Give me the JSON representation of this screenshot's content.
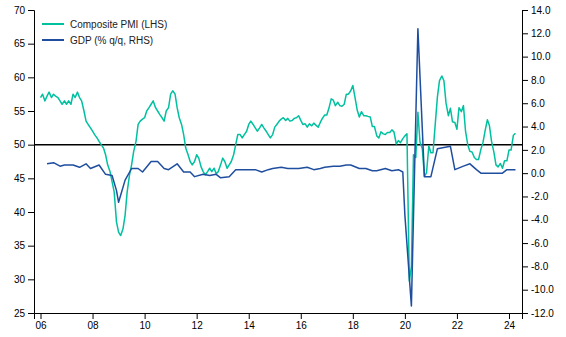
{
  "chart_data": {
    "type": "line",
    "xlim": [
      2005.75,
      2024.5
    ],
    "xticks": [
      {
        "value": 2006,
        "label": "06"
      },
      {
        "value": 2008,
        "label": "08"
      },
      {
        "value": 2010,
        "label": "10"
      },
      {
        "value": 2012,
        "label": "12"
      },
      {
        "value": 2014,
        "label": "14"
      },
      {
        "value": 2016,
        "label": "16"
      },
      {
        "value": 2018,
        "label": "18"
      },
      {
        "value": 2020,
        "label": "20"
      },
      {
        "value": 2022,
        "label": "22"
      },
      {
        "value": 2024,
        "label": "24"
      }
    ],
    "ylim": [
      25,
      70
    ],
    "yticks": [
      25,
      30,
      35,
      40,
      45,
      50,
      55,
      60,
      65,
      70
    ],
    "y2lim": [
      -12.0,
      14.0
    ],
    "y2ticks": [
      {
        "value": -12.0,
        "label": "-12.0"
      },
      {
        "value": -10.0,
        "label": "-10.0"
      },
      {
        "value": -8.0,
        "label": "-8.0"
      },
      {
        "value": -6.0,
        "label": "-6.0"
      },
      {
        "value": -4.0,
        "label": "-4.0"
      },
      {
        "value": -2.0,
        "label": "-2.0"
      },
      {
        "value": 0.0,
        "label": "0.0"
      },
      {
        "value": 2.0,
        "label": "2.0"
      },
      {
        "value": 4.0,
        "label": "4.0"
      },
      {
        "value": 6.0,
        "label": "6.0"
      },
      {
        "value": 8.0,
        "label": "8.0"
      },
      {
        "value": 10.0,
        "label": "10.0"
      },
      {
        "value": 12.0,
        "label": "12.0"
      },
      {
        "value": 14.0,
        "label": "14.0"
      }
    ],
    "grid": false,
    "legend": "upper left",
    "hline": {
      "y": 50,
      "color": "black"
    },
    "series": [
      {
        "name": "Composite PMI (LHS)",
        "color": "#00C0A0",
        "x": [
          2006.0,
          2006.08,
          2006.17,
          2006.25,
          2006.33,
          2006.42,
          2006.5,
          2006.58,
          2006.67,
          2006.75,
          2006.83,
          2006.92,
          2007.0,
          2007.08,
          2007.17,
          2007.25,
          2007.33,
          2007.42,
          2007.5,
          2007.58,
          2007.67,
          2007.75,
          2007.83,
          2007.92,
          2008.0,
          2008.08,
          2008.17,
          2008.25,
          2008.33,
          2008.42,
          2008.5,
          2008.58,
          2008.67,
          2008.75,
          2008.83,
          2008.92,
          2009.0,
          2009.08,
          2009.17,
          2009.25,
          2009.33,
          2009.42,
          2009.5,
          2009.58,
          2009.67,
          2009.75,
          2009.83,
          2009.92,
          2010.0,
          2010.08,
          2010.17,
          2010.25,
          2010.33,
          2010.42,
          2010.5,
          2010.58,
          2010.67,
          2010.75,
          2010.83,
          2010.92,
          2011.0,
          2011.08,
          2011.17,
          2011.25,
          2011.33,
          2011.42,
          2011.5,
          2011.58,
          2011.67,
          2011.75,
          2011.83,
          2011.92,
          2012.0,
          2012.08,
          2012.17,
          2012.25,
          2012.33,
          2012.42,
          2012.5,
          2012.58,
          2012.67,
          2012.75,
          2012.83,
          2012.92,
          2013.0,
          2013.08,
          2013.17,
          2013.25,
          2013.33,
          2013.42,
          2013.5,
          2013.58,
          2013.67,
          2013.75,
          2013.83,
          2013.92,
          2014.0,
          2014.08,
          2014.17,
          2014.25,
          2014.33,
          2014.42,
          2014.5,
          2014.58,
          2014.67,
          2014.75,
          2014.83,
          2014.92,
          2015.0,
          2015.08,
          2015.17,
          2015.25,
          2015.33,
          2015.42,
          2015.5,
          2015.58,
          2015.67,
          2015.75,
          2015.83,
          2015.92,
          2016.0,
          2016.08,
          2016.17,
          2016.25,
          2016.33,
          2016.42,
          2016.5,
          2016.58,
          2016.67,
          2016.75,
          2016.83,
          2016.92,
          2017.0,
          2017.08,
          2017.17,
          2017.25,
          2017.33,
          2017.42,
          2017.5,
          2017.58,
          2017.67,
          2017.75,
          2017.83,
          2017.92,
          2018.0,
          2018.08,
          2018.17,
          2018.25,
          2018.33,
          2018.42,
          2018.5,
          2018.58,
          2018.67,
          2018.75,
          2018.83,
          2018.92,
          2019.0,
          2019.08,
          2019.17,
          2019.25,
          2019.33,
          2019.42,
          2019.5,
          2019.58,
          2019.67,
          2019.75,
          2019.83,
          2019.92,
          2020.0,
          2020.08,
          2020.17,
          2020.25,
          2020.33,
          2020.42,
          2020.5,
          2020.58,
          2020.67,
          2020.75,
          2020.83,
          2020.92,
          2021.0,
          2021.08,
          2021.17,
          2021.25,
          2021.33,
          2021.42,
          2021.5,
          2021.58,
          2021.67,
          2021.75,
          2021.83,
          2021.92,
          2022.0,
          2022.08,
          2022.17,
          2022.25,
          2022.33,
          2022.42,
          2022.5,
          2022.58,
          2022.67,
          2022.75,
          2022.83,
          2022.92,
          2023.0,
          2023.08,
          2023.17,
          2023.25,
          2023.33,
          2023.42,
          2023.5,
          2023.58,
          2023.67,
          2023.75,
          2023.83,
          2023.92,
          2024.0,
          2024.08,
          2024.17,
          2024.25
        ],
        "values": [
          57.0,
          57.5,
          56.5,
          57.2,
          57.8,
          57.0,
          57.5,
          57.2,
          57.0,
          56.5,
          56.0,
          56.5,
          56.0,
          56.5,
          56.0,
          57.5,
          57.0,
          57.8,
          57.0,
          56.5,
          55.0,
          53.5,
          53.0,
          52.5,
          52.0,
          51.5,
          51.0,
          50.5,
          50.0,
          49.5,
          48.5,
          47.0,
          46.0,
          44.5,
          43.0,
          38.5,
          37.0,
          36.5,
          37.5,
          39.5,
          43.0,
          45.5,
          47.0,
          49.0,
          50.5,
          53.0,
          53.5,
          53.8,
          54.0,
          55.0,
          55.5,
          56.0,
          56.5,
          55.5,
          55.0,
          54.5,
          54.0,
          53.5,
          55.0,
          55.5,
          57.5,
          58.0,
          57.5,
          55.5,
          54.0,
          53.0,
          51.5,
          49.5,
          48.5,
          47.5,
          47.0,
          47.5,
          48.5,
          48.0,
          46.7,
          46.0,
          45.5,
          46.0,
          46.5,
          46.0,
          46.5,
          45.7,
          46.0,
          47.0,
          48.0,
          47.5,
          46.5,
          47.0,
          47.5,
          48.5,
          50.0,
          51.5,
          51.5,
          51.0,
          51.5,
          52.0,
          53.0,
          53.5,
          53.0,
          52.5,
          52.0,
          52.5,
          53.0,
          52.5,
          52.0,
          51.5,
          51.0,
          51.5,
          52.6,
          53.0,
          53.5,
          53.8,
          54.0,
          53.6,
          53.9,
          53.5,
          53.6,
          53.9,
          54.0,
          54.3,
          53.6,
          53.0,
          53.1,
          52.6,
          53.1,
          52.8,
          53.2,
          52.9,
          52.6,
          53.3,
          53.9,
          54.4,
          54.4,
          55.4,
          56.8,
          56.6,
          55.8,
          56.3,
          55.8,
          55.7,
          56.0,
          57.5,
          57.5,
          58.0,
          58.8,
          57.1,
          55.1,
          54.1,
          54.9,
          54.3,
          54.3,
          54.2,
          54.1,
          52.7,
          52.7,
          51.3,
          51.0,
          51.9,
          51.6,
          51.5,
          51.8,
          51.8,
          52.2,
          51.9,
          50.1,
          50.6,
          50.3,
          50.9,
          51.3,
          51.6,
          29.7,
          31.9,
          48.5,
          48.1,
          54.8,
          50.4,
          49.4,
          45.3,
          45.8,
          49.8,
          48.8,
          48.8,
          53.2,
          57.1,
          59.5,
          60.2,
          59.5,
          56.2,
          54.3,
          55.4,
          53.4,
          53.3,
          52.3,
          55.5,
          54.9,
          55.8,
          52.0,
          49.9,
          49.0,
          48.9,
          48.1,
          47.8,
          47.8,
          49.3,
          50.3,
          52.0,
          53.7,
          52.8,
          50.5,
          48.9,
          47.0,
          46.7,
          47.2,
          46.5,
          47.6,
          47.6,
          49.2,
          49.2,
          51.4,
          51.7
        ]
      },
      {
        "name": "GDP (% q/q, RHS)",
        "color": "#1F4E9F",
        "axis": "y2",
        "x": [
          2006.25,
          2006.5,
          2006.75,
          2006.92,
          2007.25,
          2007.5,
          2007.75,
          2007.92,
          2008.25,
          2008.5,
          2008.75,
          2008.92,
          2009.0,
          2009.25,
          2009.5,
          2009.75,
          2009.92,
          2010.25,
          2010.5,
          2010.75,
          2010.92,
          2011.25,
          2011.5,
          2011.75,
          2011.92,
          2012.25,
          2012.5,
          2012.75,
          2012.92,
          2013.25,
          2013.5,
          2013.75,
          2013.92,
          2014.25,
          2014.5,
          2014.75,
          2014.92,
          2015.25,
          2015.5,
          2015.75,
          2015.92,
          2016.25,
          2016.5,
          2016.75,
          2016.92,
          2017.25,
          2017.5,
          2017.75,
          2017.92,
          2018.25,
          2018.5,
          2018.75,
          2018.92,
          2019.25,
          2019.5,
          2019.75,
          2019.92,
          2020.0,
          2020.25,
          2020.5,
          2020.75,
          2020.92,
          2021.0,
          2021.25,
          2021.5,
          2021.75,
          2021.92,
          2022.25,
          2022.5,
          2022.75,
          2022.92,
          2023.25,
          2023.5,
          2023.75,
          2023.92,
          2024.25
        ],
        "values": [
          0.8,
          0.9,
          0.6,
          0.7,
          0.7,
          0.5,
          0.8,
          0.4,
          0.7,
          -0.1,
          -0.2,
          -1.5,
          -2.5,
          -0.6,
          0.4,
          0.4,
          0.1,
          1.0,
          1.0,
          0.4,
          0.3,
          0.8,
          0.1,
          0.1,
          -0.3,
          -0.1,
          -0.2,
          -0.1,
          -0.4,
          -0.3,
          0.3,
          0.3,
          0.3,
          0.3,
          0.1,
          0.3,
          0.4,
          0.5,
          0.4,
          0.4,
          0.4,
          0.5,
          0.3,
          0.4,
          0.5,
          0.6,
          0.6,
          0.7,
          0.7,
          0.4,
          0.4,
          0.2,
          0.2,
          0.4,
          0.2,
          0.3,
          0.1,
          -3.6,
          -11.4,
          12.4,
          -0.3,
          -0.3,
          -0.3,
          2.1,
          2.2,
          2.3,
          0.3,
          0.6,
          0.8,
          0.3,
          0.0,
          0.0,
          0.0,
          0.0,
          0.3,
          0.3
        ]
      }
    ]
  }
}
